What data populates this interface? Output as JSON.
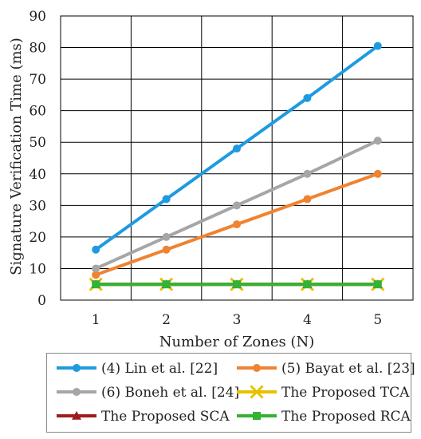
{
  "chart_data": {
    "type": "line",
    "title": "",
    "xlabel": "Number of Zones (N)",
    "ylabel": "Signature Verification Time (ms)",
    "x": [
      1,
      2,
      3,
      4,
      5
    ],
    "xlim": [
      0.5,
      5.5
    ],
    "ylim": [
      0,
      90
    ],
    "yticks": [
      0,
      10,
      20,
      30,
      40,
      50,
      60,
      70,
      80,
      90
    ],
    "xticks": [
      1,
      2,
      3,
      4,
      5
    ],
    "grid": true,
    "legend_position": "bottom",
    "series": [
      {
        "name": "(4) Lin et al. [22]",
        "values": [
          16,
          32,
          48,
          64,
          80.5
        ],
        "color": "#1e9be0",
        "marker": "circle"
      },
      {
        "name": "(5) Bayat et al. [23]",
        "values": [
          8,
          16,
          24,
          32,
          40
        ],
        "color": "#ef8330",
        "marker": "circle"
      },
      {
        "name": "(6) Boneh et al. [24]",
        "values": [
          10,
          20,
          30,
          40,
          50.5
        ],
        "color": "#a6a6a6",
        "marker": "circle"
      },
      {
        "name": "The Proposed TCA",
        "values": [
          5,
          5,
          5,
          5,
          5
        ],
        "color": "#e6c200",
        "marker": "x"
      },
      {
        "name": "The Proposed SCA",
        "values": [
          5,
          5,
          5,
          5,
          5
        ],
        "color": "#a01c1c",
        "marker": "triangle"
      },
      {
        "name": "The Proposed RCA",
        "values": [
          5,
          5,
          5,
          5,
          5
        ],
        "color": "#33b233",
        "marker": "square"
      }
    ]
  }
}
